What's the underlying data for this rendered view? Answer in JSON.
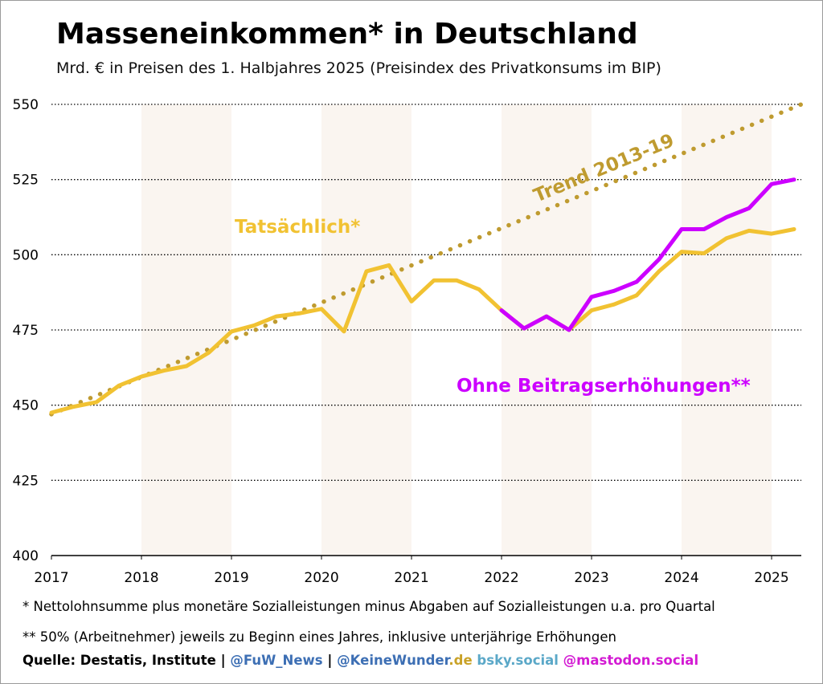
{
  "title": "Masseneinkommen* in Deutschland",
  "subtitle": "Mrd. € in Preisen des 1. Halbjahres 2025 (Preisindex des Privatkonsums im BIP)",
  "footnotes": {
    "note1": "* Nettolohnsumme plus monetäre Sozialleistungen minus Abgaben auf Sozialleistungen u.a. pro Quartal",
    "note2": "** 50% (Arbeitnehmer) jeweils zu Beginn eines Jahres, inklusive unterjährige Erhöhungen"
  },
  "source": {
    "label": "Quelle: Destatis, Institute",
    "sep1": " | ",
    "fuw": "@FuW_News",
    "sep2": " | ",
    "keine": "@KeineWunder",
    "keine_de": ".de",
    "bsky": " bsky.social",
    "mastodon": " @mastodon.social"
  },
  "colors": {
    "actual": "#f1c232",
    "ohne": "#cc00ff",
    "trend": "#bf9b30",
    "shade": "#faf5f0",
    "fuw": "#3d6fb4",
    "keine": "#3d6fb4",
    "keine_de": "#c9a227",
    "bsky": "#5ba8c8",
    "mastodon": "#d31bd3"
  },
  "chart_data": {
    "type": "line",
    "x_unit": "quarter",
    "xlim": [
      2017.0,
      2025.33
    ],
    "ylim": [
      400,
      550
    ],
    "y_ticks": [
      400,
      425,
      450,
      475,
      500,
      525,
      550
    ],
    "x_tick_labels": [
      "2017",
      "2018",
      "2019",
      "2020",
      "2021",
      "2022",
      "2023",
      "2024",
      "2025"
    ],
    "shaded_years": [
      2018,
      2020,
      2022,
      2024
    ],
    "grid": "horizontal-dotted",
    "annotations": {
      "actual": "Tatsächlich*",
      "ohne": "Ohne Beitragserhöhungen**",
      "trend": "Trend 2013-19"
    },
    "series": [
      {
        "name": "Tatsächlich*",
        "x": [
          2017.0,
          2017.25,
          2017.5,
          2017.75,
          2018.0,
          2018.25,
          2018.5,
          2018.75,
          2019.0,
          2019.25,
          2019.5,
          2019.75,
          2020.0,
          2020.25,
          2020.5,
          2020.75,
          2021.0,
          2021.25,
          2021.5,
          2021.75,
          2022.0,
          2022.25,
          2022.5,
          2022.75,
          2023.0,
          2023.25,
          2023.5,
          2023.75,
          2024.0,
          2024.25,
          2024.5,
          2024.75,
          2025.0,
          2025.25
        ],
        "values": [
          447.5,
          449.5,
          451,
          456.5,
          459.5,
          461.5,
          463,
          467.5,
          474.5,
          476.5,
          479.5,
          480.5,
          482,
          474.5,
          494.5,
          496.5,
          484.5,
          491.5,
          491.5,
          488.5,
          481.5,
          475.5,
          479.5,
          475,
          481.5,
          483.5,
          486.5,
          494.5,
          501,
          500.5,
          505.5,
          508,
          507,
          508.5
        ]
      },
      {
        "name": "Ohne Beitragserhöhungen**",
        "x": [
          2022.0,
          2022.25,
          2022.5,
          2022.75,
          2023.0,
          2023.25,
          2023.5,
          2023.75,
          2024.0,
          2024.25,
          2024.5,
          2024.75,
          2025.0,
          2025.25
        ],
        "values": [
          481.5,
          475.5,
          479.5,
          475,
          486,
          488,
          491,
          498.5,
          508.5,
          508.5,
          512.5,
          515.5,
          523.5,
          525
        ]
      },
      {
        "name": "Trend 2013-19",
        "style": "dotted",
        "x": [
          2017.0,
          2025.33
        ],
        "values": [
          447,
          550
        ]
      }
    ]
  }
}
